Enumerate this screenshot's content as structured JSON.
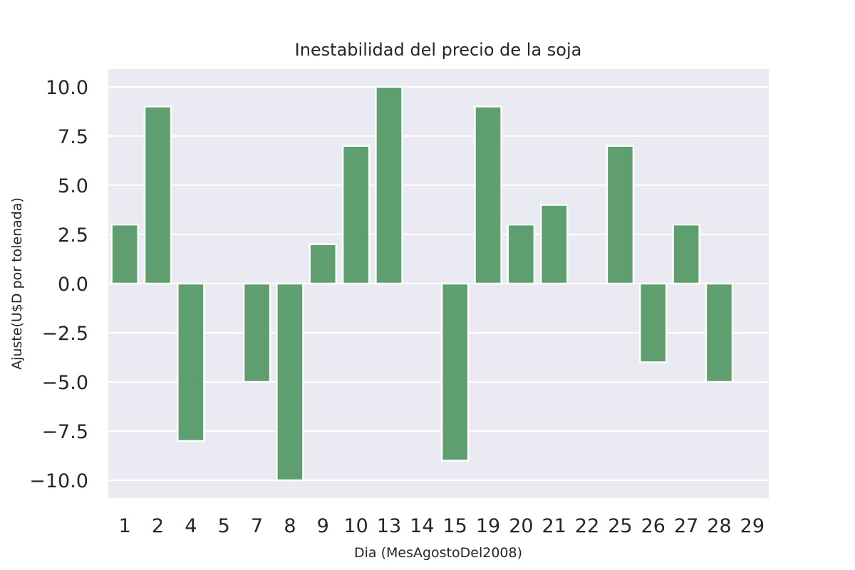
{
  "chart_data": {
    "type": "bar",
    "title": "Inestabilidad del precio de la soja",
    "xlabel": "Dia (MesAgostoDel2008)",
    "ylabel": "Ajuste(U$D por tolenada)",
    "categories": [
      "1",
      "2",
      "4",
      "5",
      "7",
      "8",
      "9",
      "10",
      "13",
      "14",
      "15",
      "19",
      "20",
      "21",
      "22",
      "25",
      "26",
      "27",
      "28",
      "29"
    ],
    "values": [
      3,
      9,
      -8,
      0,
      -5,
      -10,
      2,
      7,
      10,
      0,
      -9,
      9,
      3,
      4,
      0,
      7,
      -4,
      3,
      -5,
      0
    ],
    "ylim": [
      -10.9,
      10.9
    ],
    "yticks": [
      10.0,
      7.5,
      5.0,
      2.5,
      0.0,
      -2.5,
      -5.0,
      -7.5,
      -10.0
    ],
    "ytick_labels": [
      "10.0",
      "7.5",
      "5.0",
      "2.5",
      "0.0",
      "−2.5",
      "−5.0",
      "−7.5",
      "−10.0"
    ],
    "grid": true,
    "legend": "none",
    "colors": {
      "bar": "#5f9f6f",
      "background": "#eaeaf2",
      "grid": "#ffffff"
    }
  }
}
